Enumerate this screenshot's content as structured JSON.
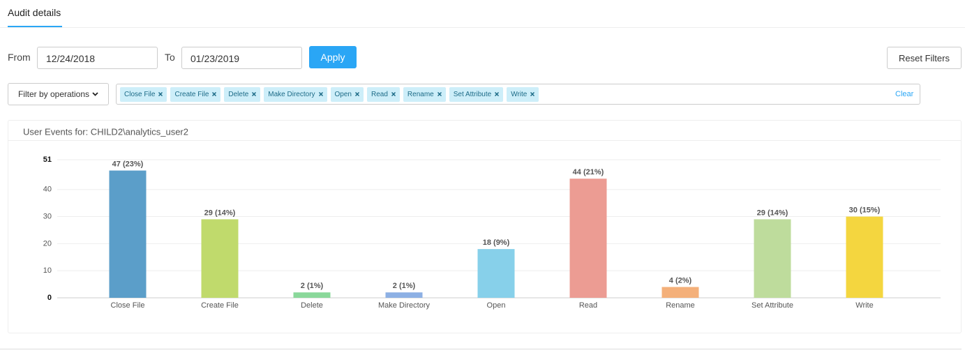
{
  "tab": "Audit details",
  "filters": {
    "from_label": "From",
    "from_value": "12/24/2018",
    "to_label": "To",
    "to_value": "01/23/2019",
    "apply": "Apply",
    "reset": "Reset Filters",
    "operations_button": "Filter by operations",
    "tags": [
      "Close File",
      "Create File",
      "Delete",
      "Make Directory",
      "Open",
      "Read",
      "Rename",
      "Set Attribute",
      "Write"
    ],
    "clear": "Clear"
  },
  "chart_data": {
    "type": "bar",
    "title": "User Events for: CHILD2\\analytics_user2",
    "categories": [
      "Close File",
      "Create File",
      "Delete",
      "Make Directory",
      "Open",
      "Read",
      "Rename",
      "Set Attribute",
      "Write"
    ],
    "values": [
      47,
      29,
      2,
      2,
      18,
      44,
      4,
      29,
      30
    ],
    "value_labels": [
      "47 (23%)",
      "29 (14%)",
      "2 (1%)",
      "2 (1%)",
      "18 (9%)",
      "44 (21%)",
      "4 (2%)",
      "29 (14%)",
      "30 (15%)"
    ],
    "colors": [
      "#5b9ec9",
      "#c0da6c",
      "#8ad89a",
      "#8db0e4",
      "#87d0ea",
      "#ec9c93",
      "#f4b07a",
      "#bedc9c",
      "#f4d63f"
    ],
    "ylim": [
      0,
      51
    ],
    "yticks": [
      0,
      10,
      20,
      30,
      40,
      51
    ],
    "grid": true
  }
}
